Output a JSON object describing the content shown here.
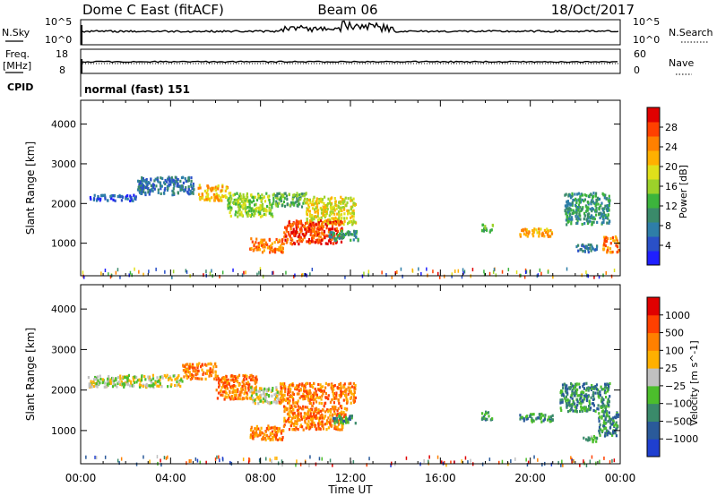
{
  "header": {
    "station": "Dome C East (fitACF)",
    "beam": "Beam 06",
    "date": "18/Oct/2017"
  },
  "top_panels": {
    "nsky_label": "N.Sky",
    "nsky_ticks": [
      "10^5",
      "10^0"
    ],
    "nsearch_label": "N.Search",
    "nsearch_ticks": [
      "10^5",
      "10^0"
    ],
    "freq_label": "Freq.",
    "freq_unit": "[MHz]",
    "freq_ticks": [
      "18",
      "8"
    ],
    "nave_label": "Nave",
    "nave_ticks": [
      "60",
      "0"
    ],
    "cpid_label": "CPID",
    "cpid_value": "normal (fast) 151"
  },
  "chart_data": [
    {
      "type": "heatmap",
      "name": "power",
      "ylabel": "Slant Range [km]",
      "xlabel": "Time UT",
      "x_ticks": [
        "00:00",
        "04:00",
        "08:00",
        "12:00",
        "16:00",
        "20:00",
        "00:00"
      ],
      "xlim_hours": [
        0,
        24
      ],
      "y_ticks": [
        1000,
        2000,
        3000,
        4000
      ],
      "ylim": [
        180,
        4600
      ],
      "colorbar_label": "Power [dB]",
      "colorbar_ticks": [
        "4",
        "8",
        "12",
        "16",
        "20",
        "24",
        "28"
      ],
      "colorbar_colors": [
        "#1f1fff",
        "#2a50c8",
        "#2e7ea8",
        "#3a8a6a",
        "#3cb43c",
        "#9cd22a",
        "#e0e01a",
        "#ffb000",
        "#ff8000",
        "#ff4000",
        "#e00000"
      ],
      "regions": [
        {
          "t0": 0.3,
          "t1": 2.5,
          "r0": 2100,
          "r1": 2250,
          "level": 1
        },
        {
          "t0": 2.5,
          "t1": 5.0,
          "r0": 2250,
          "r1": 2700,
          "level": 2
        },
        {
          "t0": 5.2,
          "t1": 6.5,
          "r0": 2100,
          "r1": 2500,
          "level": 7
        },
        {
          "t0": 6.5,
          "t1": 8.5,
          "r0": 1700,
          "r1": 2300,
          "level": 5
        },
        {
          "t0": 8.5,
          "t1": 10.0,
          "r0": 1950,
          "r1": 2300,
          "level": 4
        },
        {
          "t0": 10.0,
          "t1": 12.2,
          "r0": 1500,
          "r1": 2200,
          "level": 6
        },
        {
          "t0": 7.5,
          "t1": 9.0,
          "r0": 800,
          "r1": 1150,
          "level": 8
        },
        {
          "t0": 9.0,
          "t1": 11.6,
          "r0": 1000,
          "r1": 1600,
          "level": 9
        },
        {
          "t0": 11.0,
          "t1": 12.3,
          "r0": 1100,
          "r1": 1350,
          "level": 3
        },
        {
          "t0": 17.8,
          "t1": 18.3,
          "r0": 1300,
          "r1": 1500,
          "level": 4
        },
        {
          "t0": 19.5,
          "t1": 21.0,
          "r0": 1200,
          "r1": 1400,
          "level": 7
        },
        {
          "t0": 21.5,
          "t1": 23.5,
          "r0": 1500,
          "r1": 2300,
          "level": 3
        },
        {
          "t0": 22.0,
          "t1": 23.0,
          "r0": 800,
          "r1": 1000,
          "level": 2
        },
        {
          "t0": 23.2,
          "t1": 23.9,
          "r0": 800,
          "r1": 1200,
          "level": 8
        }
      ]
    },
    {
      "type": "heatmap",
      "name": "velocity",
      "ylabel": "Slant Range [km]",
      "xlabel": "Time UT",
      "x_ticks": [
        "00:00",
        "04:00",
        "08:00",
        "12:00",
        "16:00",
        "20:00",
        "00:00"
      ],
      "xlim_hours": [
        0,
        24
      ],
      "y_ticks": [
        1000,
        2000,
        3000,
        4000
      ],
      "ylim": [
        180,
        4600
      ],
      "colorbar_label": "Velocity [m s^-1]",
      "colorbar_ticks": [
        "1000",
        "500",
        "100",
        "25",
        "−25",
        "−100",
        "−500",
        "−1000"
      ],
      "colorbar_colors": [
        "#1f3fd0",
        "#2a5a9a",
        "#3a8a6a",
        "#4cbe2c",
        "#c0c0c0",
        "#ffb000",
        "#ff8000",
        "#ff4000",
        "#e00000"
      ],
      "regions": [
        {
          "t0": 0.3,
          "t1": 4.5,
          "r0": 2100,
          "r1": 2400,
          "level": 4
        },
        {
          "t0": 4.5,
          "t1": 6.0,
          "r0": 2300,
          "r1": 2700,
          "level": 6
        },
        {
          "t0": 6.0,
          "t1": 7.8,
          "r0": 1800,
          "r1": 2400,
          "level": 6
        },
        {
          "t0": 7.5,
          "t1": 8.8,
          "r0": 1700,
          "r1": 2100,
          "level": 4
        },
        {
          "t0": 8.8,
          "t1": 12.2,
          "r0": 1700,
          "r1": 2200,
          "level": 6
        },
        {
          "t0": 7.5,
          "t1": 9.0,
          "r0": 800,
          "r1": 1150,
          "level": 6
        },
        {
          "t0": 9.0,
          "t1": 11.8,
          "r0": 1050,
          "r1": 1650,
          "level": 6
        },
        {
          "t0": 11.2,
          "t1": 12.3,
          "r0": 1200,
          "r1": 1400,
          "level": 2
        },
        {
          "t0": 17.8,
          "t1": 18.3,
          "r0": 1300,
          "r1": 1500,
          "level": 2
        },
        {
          "t0": 19.5,
          "t1": 21.0,
          "r0": 1250,
          "r1": 1450,
          "level": 2
        },
        {
          "t0": 21.3,
          "t1": 23.5,
          "r0": 1500,
          "r1": 2200,
          "level": 2
        },
        {
          "t0": 22.3,
          "t1": 23.0,
          "r0": 750,
          "r1": 900,
          "level": 3
        },
        {
          "t0": 23.0,
          "t1": 23.9,
          "r0": 900,
          "r1": 1500,
          "level": 2
        }
      ]
    }
  ]
}
